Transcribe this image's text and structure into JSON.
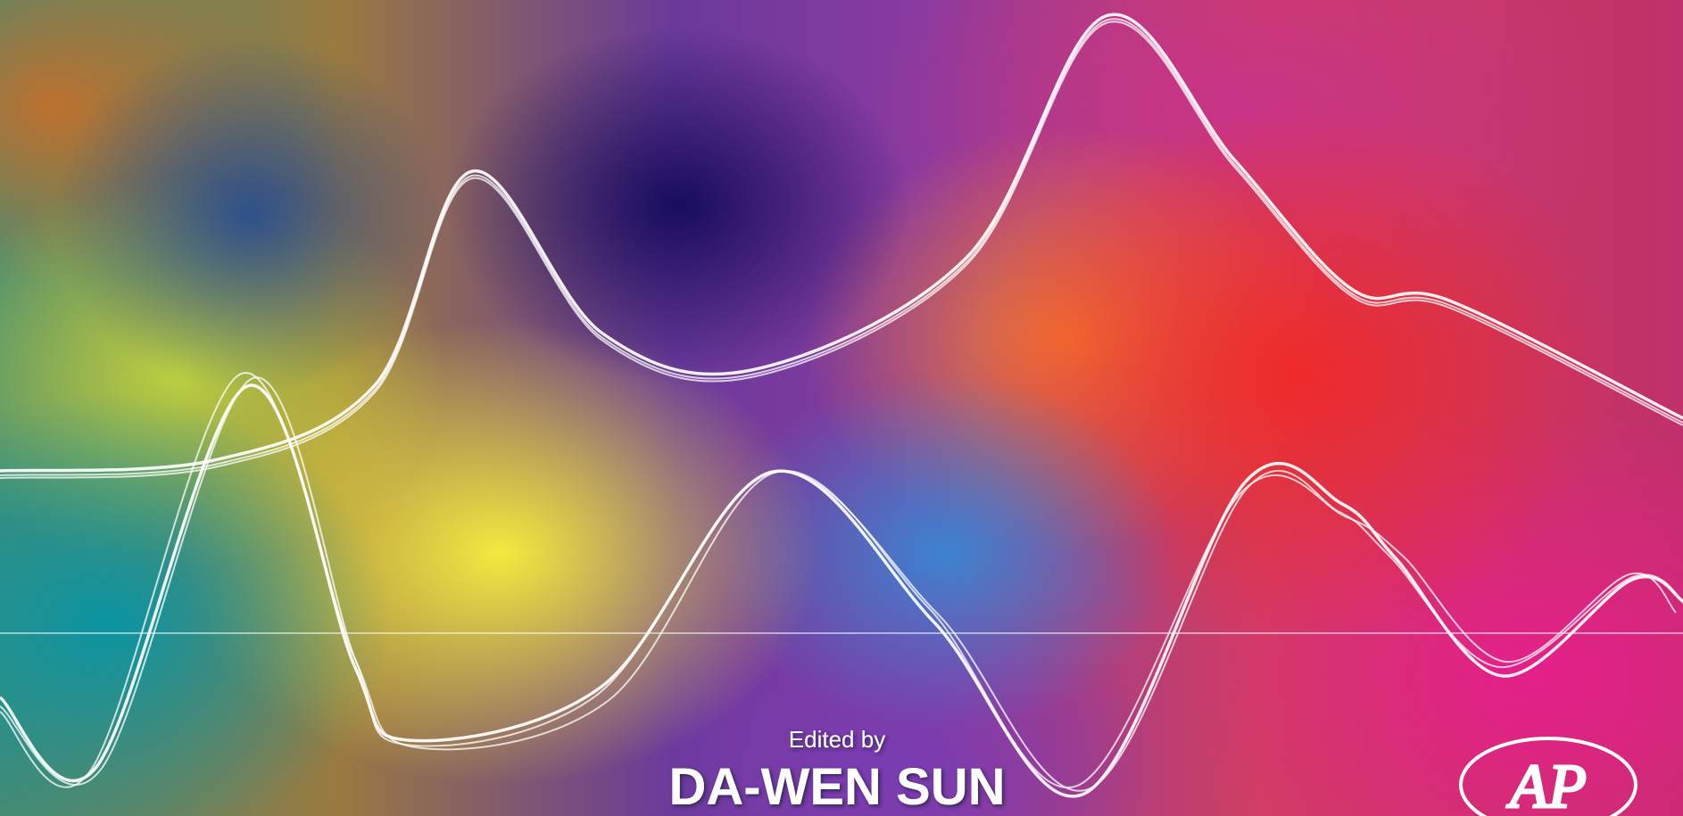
{
  "cover": {
    "editor_prefix": "Edited by",
    "editor_name": "DA-WEN SUN",
    "publisher_logo": "AP"
  }
}
